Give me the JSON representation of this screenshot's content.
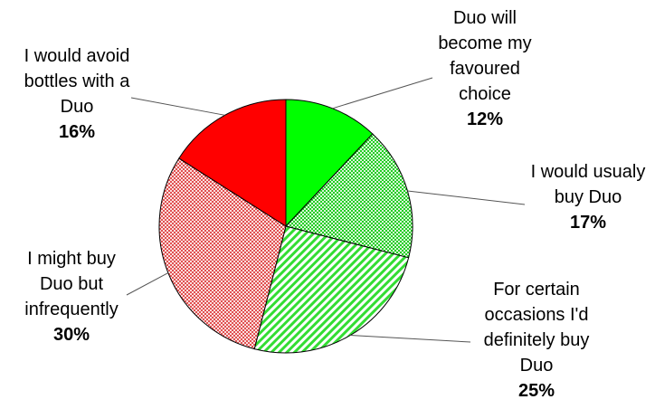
{
  "chart_data": {
    "type": "pie",
    "title": "",
    "start_angle_deg": 0,
    "direction": "clockwise",
    "slices": [
      {
        "lines": [
          "Duo will",
          "become my",
          "favoured",
          "choice"
        ],
        "value": 12,
        "value_label": "12%",
        "color": "#00ff00",
        "pattern": "solid"
      },
      {
        "lines": [
          "I would usualy",
          "buy Duo"
        ],
        "value": 17,
        "value_label": "17%",
        "color": "#66e466",
        "pattern": "stipple"
      },
      {
        "lines": [
          "For certain",
          "occasions I'd",
          "definitely buy",
          "Duo"
        ],
        "value": 25,
        "value_label": "25%",
        "color": "#66e466",
        "pattern": "diagonal"
      },
      {
        "lines": [
          "I might buy",
          "Duo but",
          "infrequently"
        ],
        "value": 30,
        "value_label": "30%",
        "color": "#f08080",
        "pattern": "stipple"
      },
      {
        "lines": [
          "I would avoid",
          "bottles with a",
          "Duo"
        ],
        "value": 16,
        "value_label": "16%",
        "color": "#ff0000",
        "pattern": "solid"
      }
    ]
  }
}
